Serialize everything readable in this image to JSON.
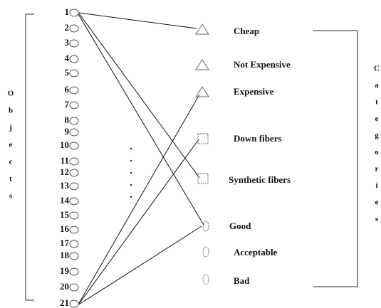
{
  "objects": [
    "1",
    "2",
    "3",
    "4",
    "5",
    "6",
    "7",
    "8",
    "9",
    "10",
    "11",
    "12",
    "13",
    "14",
    "15",
    "16",
    "17",
    "18",
    "19",
    "20",
    "21"
  ],
  "categories": [
    "Cheap",
    "Not Expensive",
    "Expensive",
    "Down fibers",
    "Synthetic fibers",
    "Good",
    "Acceptable",
    "Bad"
  ],
  "left_label": [
    "O",
    "b",
    "j",
    "e",
    "c",
    "t",
    "s"
  ],
  "right_label": [
    "C",
    "a",
    "t",
    "e",
    "g",
    "o",
    "r",
    "i",
    "e",
    "s"
  ]
}
